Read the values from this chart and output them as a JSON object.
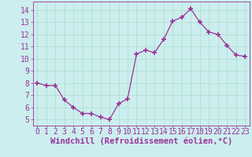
{
  "x": [
    0,
    1,
    2,
    3,
    4,
    5,
    6,
    7,
    8,
    9,
    10,
    11,
    12,
    13,
    14,
    15,
    16,
    17,
    18,
    19,
    20,
    21,
    22,
    23
  ],
  "y": [
    8.0,
    7.8,
    7.8,
    6.6,
    6.0,
    5.5,
    5.5,
    5.2,
    5.0,
    6.3,
    6.7,
    10.4,
    10.7,
    10.5,
    11.6,
    13.1,
    13.4,
    14.1,
    13.0,
    12.2,
    12.0,
    11.1,
    10.3,
    10.2
  ],
  "line_color": "#993399",
  "marker": "+",
  "marker_size": 4,
  "marker_lw": 1.2,
  "bg_color": "#cceeee",
  "grid_color": "#aaddcc",
  "xlabel": "Windchill (Refroidissement éolien,°C)",
  "xlabel_color": "#993399",
  "xlabel_fontsize": 7.5,
  "tick_label_color": "#993399",
  "tick_fontsize": 7,
  "ylim": [
    4.5,
    14.7
  ],
  "xlim": [
    -0.5,
    23.5
  ],
  "yticks": [
    5,
    6,
    7,
    8,
    9,
    10,
    11,
    12,
    13,
    14
  ],
  "xticks": [
    0,
    1,
    2,
    3,
    4,
    5,
    6,
    7,
    8,
    9,
    10,
    11,
    12,
    13,
    14,
    15,
    16,
    17,
    18,
    19,
    20,
    21,
    22,
    23
  ]
}
